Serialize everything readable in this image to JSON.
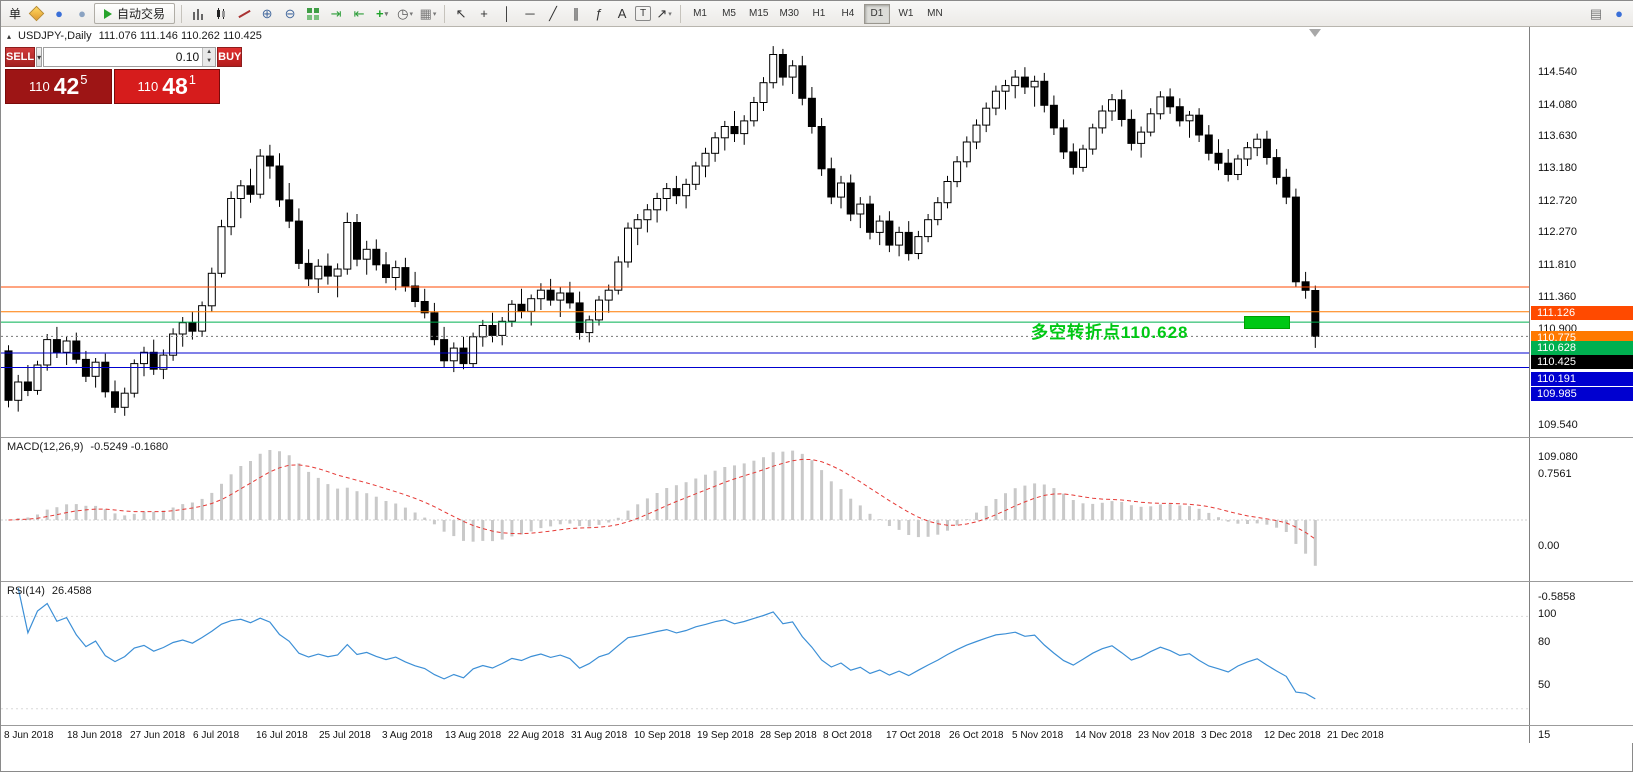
{
  "toolbar": {
    "order_char": "单",
    "autotrade_label": "自动交易",
    "left_icons": [
      {
        "name": "new-order-icon"
      },
      {
        "name": "market-watch-icon",
        "glyph": "●",
        "color": "#3a6fd8"
      },
      {
        "name": "navigator-icon",
        "glyph": "●",
        "color": "#8ba3c2"
      }
    ],
    "chart_tool_icons": [
      {
        "name": "bar-chart-icon"
      },
      {
        "name": "candlestick-chart-icon"
      },
      {
        "name": "line-chart-icon"
      },
      {
        "name": "zoom-in-icon",
        "glyph": "⊕",
        "color": "#44699e"
      },
      {
        "name": "zoom-out-icon",
        "glyph": "⊖",
        "color": "#44699e"
      },
      {
        "name": "tile-windows-icon"
      },
      {
        "name": "auto-scroll-icon",
        "glyph": "⇥",
        "color": "#2e9e3a"
      },
      {
        "name": "chart-shift-icon",
        "glyph": "⇤",
        "color": "#2e9e3a"
      },
      {
        "name": "indicators-icon",
        "glyph": "+",
        "color": "#1fa32a",
        "bold": true,
        "caret": true
      },
      {
        "name": "periods-icon",
        "glyph": "◷",
        "color": "#555555",
        "caret": true
      },
      {
        "name": "templates-icon",
        "glyph": "▦",
        "color": "#7a7a7a",
        "caret": true
      }
    ],
    "line_tool_icons": [
      {
        "name": "cursor-icon",
        "glyph": "↖",
        "color": "#333333"
      },
      {
        "name": "crosshair-icon",
        "glyph": "+",
        "color": "#333333"
      },
      {
        "name": "vertical-line-icon",
        "glyph": "│",
        "color": "#333333"
      },
      {
        "name": "horizontal-line-icon",
        "glyph": "─",
        "color": "#333333"
      },
      {
        "name": "trendline-icon",
        "glyph": "╱",
        "color": "#333333"
      },
      {
        "name": "channel-icon",
        "glyph": "∥",
        "color": "#333333"
      },
      {
        "name": "fibonacci-icon",
        "glyph": "ƒ",
        "color": "#333333"
      },
      {
        "name": "text-icon",
        "glyph": "A",
        "color": "#333333"
      },
      {
        "name": "text-label-icon",
        "glyph": "T",
        "color": "#333333",
        "boxed": true
      },
      {
        "name": "arrows-icon",
        "glyph": "↗",
        "color": "#333333",
        "caret": true
      }
    ],
    "timeframes": [
      "M1",
      "M5",
      "M15",
      "M30",
      "H1",
      "H4",
      "D1",
      "W1",
      "MN"
    ],
    "active_timeframe": "D1",
    "right_icons": [
      {
        "name": "open-chart-icon",
        "glyph": "▤",
        "color": "#777777"
      },
      {
        "name": "community-icon",
        "glyph": "●",
        "color": "#3a6fd8"
      }
    ]
  },
  "trade_panel": {
    "sell_label": "SELL",
    "buy_label": "BUY",
    "volume": "0.10",
    "sell_price": {
      "base": "110",
      "big": "42",
      "sup": "5"
    },
    "buy_price": {
      "base": "110",
      "big": "48",
      "sup": "1"
    }
  },
  "chart_data": {
    "type": "candlestick",
    "symbol": "USDJPY-",
    "period": "Daily",
    "title": "USDJPY-,Daily",
    "ohlc_display": "111.076 111.146 110.262 110.425",
    "price_range": [
      109.0,
      114.81
    ],
    "y_ticks": [
      "114.540",
      "114.080",
      "113.630",
      "113.180",
      "112.720",
      "112.270",
      "111.810",
      "111.360",
      "110.900",
      "109.540",
      "109.080"
    ],
    "levels": [
      {
        "price": 111.126,
        "label": "111.126",
        "color": "#ff4a00"
      },
      {
        "price": 110.775,
        "label": "110.775",
        "color": "#ff7a00"
      },
      {
        "price": 110.628,
        "label": "110.628",
        "color": "#00b050"
      },
      {
        "price": 110.425,
        "label": "110.425",
        "color": "#000000",
        "current": true
      },
      {
        "price": 110.191,
        "label": "110.191",
        "color": "#0000d0"
      },
      {
        "price": 109.985,
        "label": "109.985",
        "color": "#0000d0"
      }
    ],
    "annotation": {
      "text": "多空转折点110.628",
      "color": "#00c814"
    },
    "indicators": [
      {
        "name": "MACD",
        "display": "MACD(12,26,9)",
        "values_display": "-0.5249 -0.1680",
        "ticks": [
          "0.7561",
          "0.00",
          "-0.5858"
        ],
        "main_color": "#c9c9c9",
        "signal_color": "#e53935"
      },
      {
        "name": "RSI",
        "display": "RSI(14)",
        "values_display": "26.4588",
        "ticks": [
          "100",
          "80",
          "50",
          "15"
        ],
        "color": "#3c8fd6"
      }
    ],
    "x_labels": [
      "8 Jun 2018",
      "18 Jun 2018",
      "27 Jun 2018",
      "6 Jul 2018",
      "16 Jul 2018",
      "25 Jul 2018",
      "3 Aug 2018",
      "13 Aug 2018",
      "22 Aug 2018",
      "31 Aug 2018",
      "10 Sep 2018",
      "19 Sep 2018",
      "28 Sep 2018",
      "8 Oct 2018",
      "17 Oct 2018",
      "26 Oct 2018",
      "5 Nov 2018",
      "14 Nov 2018",
      "23 Nov 2018",
      "3 Dec 2018",
      "12 Dec 2018",
      "21 Dec 2018"
    ],
    "candles": [
      [
        110.22,
        110.3,
        109.42,
        109.52
      ],
      [
        109.52,
        109.88,
        109.36,
        109.78
      ],
      [
        109.78,
        110.02,
        109.58,
        109.66
      ],
      [
        109.66,
        110.08,
        109.6,
        110.02
      ],
      [
        110.02,
        110.46,
        109.94,
        110.38
      ],
      [
        110.38,
        110.56,
        110.12,
        110.2
      ],
      [
        110.2,
        110.42,
        110.02,
        110.36
      ],
      [
        110.36,
        110.48,
        110.04,
        110.1
      ],
      [
        110.1,
        110.22,
        109.78,
        109.86
      ],
      [
        109.86,
        110.12,
        109.7,
        110.06
      ],
      [
        110.06,
        110.18,
        109.56,
        109.64
      ],
      [
        109.64,
        109.8,
        109.34,
        109.42
      ],
      [
        109.42,
        109.7,
        109.3,
        109.62
      ],
      [
        109.62,
        110.1,
        109.56,
        110.04
      ],
      [
        110.04,
        110.28,
        109.86,
        110.2
      ],
      [
        110.2,
        110.38,
        109.88,
        109.96
      ],
      [
        109.96,
        110.24,
        109.82,
        110.16
      ],
      [
        110.16,
        110.54,
        110.08,
        110.46
      ],
      [
        110.46,
        110.7,
        110.28,
        110.62
      ],
      [
        110.62,
        110.78,
        110.38,
        110.5
      ],
      [
        110.5,
        110.92,
        110.42,
        110.86
      ],
      [
        110.86,
        111.4,
        110.78,
        111.32
      ],
      [
        111.32,
        112.08,
        111.26,
        111.98
      ],
      [
        111.98,
        112.48,
        111.86,
        112.38
      ],
      [
        112.38,
        112.64,
        112.1,
        112.56
      ],
      [
        112.56,
        112.8,
        112.32,
        112.44
      ],
      [
        112.44,
        113.08,
        112.38,
        112.98
      ],
      [
        112.98,
        113.14,
        112.66,
        112.84
      ],
      [
        112.84,
        113.02,
        112.26,
        112.36
      ],
      [
        112.36,
        112.6,
        111.96,
        112.06
      ],
      [
        112.06,
        112.24,
        111.38,
        111.46
      ],
      [
        111.46,
        111.66,
        111.14,
        111.24
      ],
      [
        111.24,
        111.52,
        111.04,
        111.42
      ],
      [
        111.42,
        111.6,
        111.16,
        111.28
      ],
      [
        111.28,
        111.46,
        110.98,
        111.38
      ],
      [
        111.38,
        112.18,
        111.3,
        112.04
      ],
      [
        112.04,
        112.16,
        111.42,
        111.52
      ],
      [
        111.52,
        111.78,
        111.3,
        111.66
      ],
      [
        111.66,
        111.8,
        111.36,
        111.44
      ],
      [
        111.44,
        111.62,
        111.18,
        111.26
      ],
      [
        111.26,
        111.5,
        111.08,
        111.4
      ],
      [
        111.4,
        111.54,
        111.06,
        111.14
      ],
      [
        111.14,
        111.34,
        110.84,
        110.92
      ],
      [
        110.92,
        111.1,
        110.68,
        110.76
      ],
      [
        110.76,
        110.9,
        110.3,
        110.38
      ],
      [
        110.38,
        110.56,
        109.98,
        110.08
      ],
      [
        110.08,
        110.34,
        109.92,
        110.26
      ],
      [
        110.26,
        110.42,
        109.96,
        110.04
      ],
      [
        110.04,
        110.48,
        109.98,
        110.42
      ],
      [
        110.42,
        110.66,
        110.28,
        110.58
      ],
      [
        110.58,
        110.76,
        110.34,
        110.44
      ],
      [
        110.44,
        110.7,
        110.3,
        110.64
      ],
      [
        110.64,
        110.94,
        110.56,
        110.88
      ],
      [
        110.88,
        111.1,
        110.68,
        110.78
      ],
      [
        110.78,
        111.02,
        110.58,
        110.96
      ],
      [
        110.96,
        111.18,
        110.8,
        111.08
      ],
      [
        111.08,
        111.24,
        110.86,
        110.94
      ],
      [
        110.94,
        111.12,
        110.7,
        111.04
      ],
      [
        111.04,
        111.2,
        110.82,
        110.9
      ],
      [
        110.9,
        111.06,
        110.38,
        110.48
      ],
      [
        110.48,
        110.72,
        110.34,
        110.66
      ],
      [
        110.66,
        111.0,
        110.58,
        110.94
      ],
      [
        110.94,
        111.16,
        110.76,
        111.08
      ],
      [
        111.08,
        111.56,
        111.02,
        111.48
      ],
      [
        111.48,
        112.04,
        111.4,
        111.96
      ],
      [
        111.96,
        112.16,
        111.72,
        112.08
      ],
      [
        112.08,
        112.3,
        111.9,
        112.22
      ],
      [
        112.22,
        112.46,
        112.04,
        112.38
      ],
      [
        112.38,
        112.6,
        112.2,
        112.52
      ],
      [
        112.52,
        112.7,
        112.3,
        112.42
      ],
      [
        112.42,
        112.66,
        112.24,
        112.58
      ],
      [
        112.58,
        112.9,
        112.5,
        112.84
      ],
      [
        112.84,
        113.1,
        112.68,
        113.02
      ],
      [
        113.02,
        113.32,
        112.9,
        113.24
      ],
      [
        113.24,
        113.48,
        113.06,
        113.4
      ],
      [
        113.4,
        113.62,
        113.18,
        113.3
      ],
      [
        113.3,
        113.56,
        113.14,
        113.48
      ],
      [
        113.48,
        113.82,
        113.4,
        113.74
      ],
      [
        113.74,
        114.1,
        113.62,
        114.02
      ],
      [
        114.02,
        114.54,
        113.94,
        114.42
      ],
      [
        114.42,
        114.5,
        113.98,
        114.1
      ],
      [
        114.1,
        114.34,
        113.86,
        114.26
      ],
      [
        114.26,
        114.4,
        113.7,
        113.8
      ],
      [
        113.8,
        113.96,
        113.3,
        113.4
      ],
      [
        113.4,
        113.52,
        112.7,
        112.8
      ],
      [
        112.8,
        112.96,
        112.3,
        112.4
      ],
      [
        112.4,
        112.7,
        112.24,
        112.6
      ],
      [
        112.6,
        112.72,
        112.06,
        112.16
      ],
      [
        112.16,
        112.4,
        111.96,
        112.3
      ],
      [
        112.3,
        112.42,
        111.8,
        111.9
      ],
      [
        111.9,
        112.14,
        111.72,
        112.06
      ],
      [
        112.06,
        112.2,
        111.62,
        111.72
      ],
      [
        111.72,
        111.98,
        111.56,
        111.9
      ],
      [
        111.9,
        112.06,
        111.5,
        111.6
      ],
      [
        111.6,
        111.92,
        111.52,
        111.84
      ],
      [
        111.84,
        112.16,
        111.76,
        112.08
      ],
      [
        112.08,
        112.4,
        112.0,
        112.32
      ],
      [
        112.32,
        112.7,
        112.24,
        112.62
      ],
      [
        112.62,
        112.98,
        112.54,
        112.9
      ],
      [
        112.9,
        113.26,
        112.82,
        113.18
      ],
      [
        113.18,
        113.5,
        113.08,
        113.42
      ],
      [
        113.42,
        113.74,
        113.32,
        113.66
      ],
      [
        113.66,
        113.98,
        113.56,
        113.9
      ],
      [
        113.9,
        114.06,
        113.64,
        113.98
      ],
      [
        113.98,
        114.2,
        113.8,
        114.1
      ],
      [
        114.1,
        114.24,
        113.86,
        113.96
      ],
      [
        113.96,
        114.12,
        113.68,
        114.04
      ],
      [
        114.04,
        114.16,
        113.6,
        113.7
      ],
      [
        113.7,
        113.84,
        113.28,
        113.38
      ],
      [
        113.38,
        113.5,
        112.94,
        113.04
      ],
      [
        113.04,
        113.16,
        112.72,
        112.82
      ],
      [
        112.82,
        113.14,
        112.76,
        113.08
      ],
      [
        113.08,
        113.44,
        113.0,
        113.38
      ],
      [
        113.38,
        113.7,
        113.3,
        113.62
      ],
      [
        113.62,
        113.86,
        113.48,
        113.78
      ],
      [
        113.78,
        113.92,
        113.4,
        113.5
      ],
      [
        113.5,
        113.64,
        113.06,
        113.16
      ],
      [
        113.16,
        113.4,
        112.96,
        113.32
      ],
      [
        113.32,
        113.66,
        113.26,
        113.58
      ],
      [
        113.58,
        113.9,
        113.5,
        113.82
      ],
      [
        113.82,
        113.94,
        113.58,
        113.68
      ],
      [
        113.68,
        113.8,
        113.4,
        113.48
      ],
      [
        113.48,
        113.62,
        113.24,
        113.56
      ],
      [
        113.56,
        113.66,
        113.18,
        113.28
      ],
      [
        113.28,
        113.42,
        112.92,
        113.02
      ],
      [
        113.02,
        113.22,
        112.78,
        112.88
      ],
      [
        112.88,
        113.08,
        112.62,
        112.72
      ],
      [
        112.72,
        113.0,
        112.64,
        112.94
      ],
      [
        112.94,
        113.18,
        112.84,
        113.1
      ],
      [
        113.1,
        113.3,
        112.98,
        113.22
      ],
      [
        113.22,
        113.34,
        112.86,
        112.96
      ],
      [
        112.96,
        113.08,
        112.58,
        112.68
      ],
      [
        112.68,
        112.8,
        112.3,
        112.4
      ],
      [
        112.4,
        112.52,
        111.12,
        111.2
      ],
      [
        111.2,
        111.34,
        110.96,
        111.08
      ],
      [
        111.076,
        111.146,
        110.262,
        110.425
      ]
    ]
  }
}
